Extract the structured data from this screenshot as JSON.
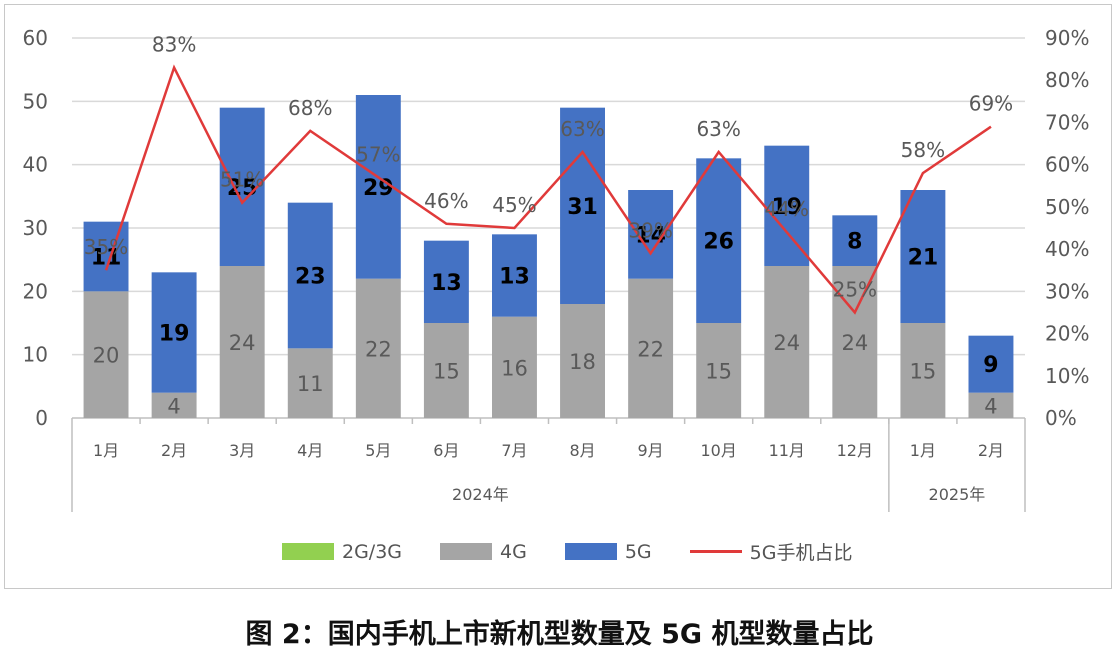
{
  "chart_data": {
    "type": "bar",
    "stacked": true,
    "categories": [
      "1月",
      "2月",
      "3月",
      "4月",
      "5月",
      "6月",
      "7月",
      "8月",
      "9月",
      "10月",
      "11月",
      "12月",
      "1月",
      "2月"
    ],
    "year_groups": [
      {
        "label": "2024年",
        "count": 12
      },
      {
        "label": "2025年",
        "count": 2
      }
    ],
    "series": [
      {
        "name": "2G/3G",
        "color": "#92d050",
        "values": [
          0,
          0,
          0,
          0,
          0,
          0,
          0,
          0,
          0,
          0,
          0,
          0,
          0,
          0
        ]
      },
      {
        "name": "4G",
        "color": "#a5a5a5",
        "values": [
          20,
          4,
          24,
          11,
          22,
          15,
          16,
          18,
          22,
          15,
          24,
          24,
          15,
          4
        ]
      },
      {
        "name": "5G",
        "color": "#4472c4",
        "values": [
          11,
          19,
          25,
          23,
          29,
          13,
          13,
          31,
          14,
          26,
          19,
          8,
          21,
          9
        ]
      }
    ],
    "line_series": {
      "name": "5G手机占比",
      "color": "#e03a3a",
      "axis": "right",
      "values": [
        35,
        83,
        51,
        68,
        57,
        46,
        45,
        63,
        39,
        63,
        44,
        25,
        58,
        69
      ],
      "labels": [
        "35%",
        "83%",
        "51%",
        "68%",
        "57%",
        "46%",
        "45%",
        "63%",
        "39%",
        "63%",
        "44%",
        "25%",
        "58%",
        "69%"
      ]
    },
    "y_left": {
      "min": 0,
      "max": 60,
      "ticks": [
        "0",
        "10",
        "20",
        "30",
        "40",
        "50",
        "60"
      ]
    },
    "y_right": {
      "min": 0,
      "max": 90,
      "ticks": [
        "0%",
        "10%",
        "20%",
        "30%",
        "40%",
        "50%",
        "60%",
        "70%",
        "80%",
        "90%"
      ]
    },
    "grid": true,
    "legend_position": "bottom"
  },
  "legend": {
    "items": [
      {
        "label": "2G/3G",
        "color": "#92d050",
        "kind": "bar"
      },
      {
        "label": "4G",
        "color": "#a5a5a5",
        "kind": "bar"
      },
      {
        "label": "5G",
        "color": "#4472c4",
        "kind": "bar"
      },
      {
        "label": "5G手机占比",
        "color": "#e03a3a",
        "kind": "line"
      }
    ]
  },
  "caption": "图 2：国内手机上市新机型数量及 5G 机型数量占比"
}
